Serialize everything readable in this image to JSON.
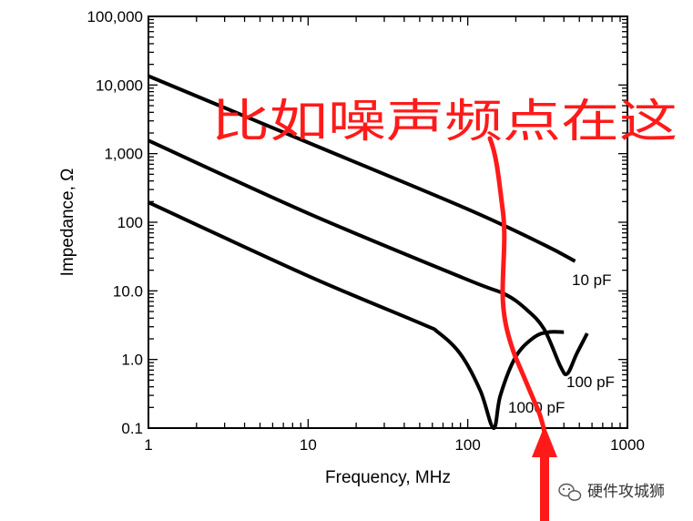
{
  "chart_data": {
    "type": "line",
    "title": "",
    "xlabel": "Frequency, MHz",
    "ylabel": "Impedance, Ω",
    "x_scale": "log",
    "y_scale": "log",
    "xlim": [
      1,
      1000
    ],
    "ylim": [
      0.1,
      100000
    ],
    "x_ticks": [
      {
        "value": 1,
        "label": "1"
      },
      {
        "value": 10,
        "label": "10"
      },
      {
        "value": 100,
        "label": "100"
      },
      {
        "value": 1000,
        "label": "1000"
      }
    ],
    "y_ticks": [
      {
        "value": 0.1,
        "label": "0.1"
      },
      {
        "value": 1,
        "label": "1.0"
      },
      {
        "value": 10,
        "label": "10.0"
      },
      {
        "value": 100,
        "label": "100"
      },
      {
        "value": 1000,
        "label": "1,000"
      },
      {
        "value": 10000,
        "label": "10,000"
      },
      {
        "value": 100000,
        "label": "100,000"
      }
    ],
    "grid": false,
    "series": [
      {
        "name": "10 pF",
        "x": [
          1,
          10,
          100,
          300,
          470
        ],
        "y": [
          13500,
          1450,
          155,
          47,
          27
        ]
      },
      {
        "name": "100 pF",
        "x": [
          1,
          10,
          100,
          170,
          230,
          300,
          380,
          420,
          480,
          560
        ],
        "y": [
          1550,
          135,
          14.5,
          9,
          5.5,
          2.8,
          0.8,
          0.62,
          1.2,
          2.4
        ]
      },
      {
        "name": "1000 pF",
        "x": [
          1,
          10,
          50,
          65,
          90,
          120,
          145,
          160,
          200,
          260,
          320,
          400
        ],
        "y": [
          195,
          16.5,
          3.4,
          2.5,
          1.2,
          0.35,
          0.1,
          0.3,
          1.1,
          2.1,
          2.5,
          2.5
        ]
      }
    ],
    "annotations": {
      "callout": "比如噪声频点在这",
      "curve_labels": [
        "10 pF",
        "100 pF",
        "1000 pF"
      ]
    }
  },
  "watermark": {
    "text": "硬件攻城狮",
    "icon": "wechat-icon"
  },
  "colors": {
    "axis": "#000000",
    "series": "#000000",
    "annotation": "#ff1a1a"
  }
}
